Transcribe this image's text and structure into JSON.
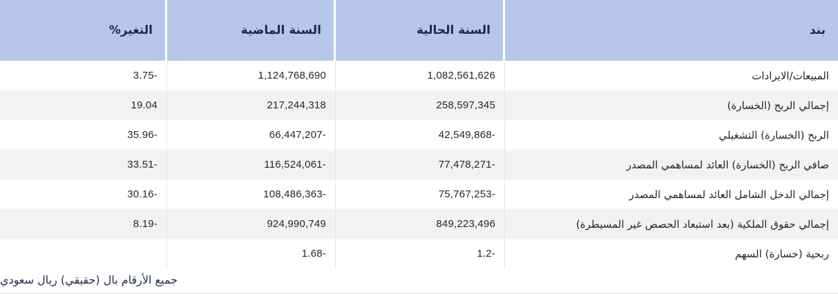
{
  "table": {
    "columns": [
      {
        "key": "item",
        "label": "بند"
      },
      {
        "key": "current",
        "label": "السنة الحالية"
      },
      {
        "key": "previous",
        "label": "السنة الماضية"
      },
      {
        "key": "change",
        "label": "التغير%"
      }
    ],
    "rows": [
      {
        "item": "المبيعات/الايرادات",
        "current": "1,082,561,626",
        "previous": "1,124,768,690",
        "change": "-3.75"
      },
      {
        "item": "إجمالي الربح (الخسارة)",
        "current": "258,597,345",
        "previous": "217,244,318",
        "change": "19.04"
      },
      {
        "item": "الربح (الخسارة) التشغيلي",
        "current": "-42,549,868",
        "previous": "-66,447,207",
        "change": "-35.96"
      },
      {
        "item": "صافي الربح (الخسارة) العائد لمساهمي المصدر",
        "current": "-77,478,271",
        "previous": "-116,524,061",
        "change": "-33.51"
      },
      {
        "item": "إجمالي الدخل الشامل العائد لمساهمي المصدر",
        "current": "-75,767,253",
        "previous": "-108,486,363",
        "change": "-30.16"
      },
      {
        "item": "إجمالي حقوق الملكية (بعد استبعاد الحصص غير المسيطرة)",
        "current": "849,223,496",
        "previous": "924,990,749",
        "change": "-8.19"
      },
      {
        "item": "ربحية (خسارة) السهم",
        "current": "-1.2",
        "previous": "-1.68",
        "change": ""
      }
    ]
  },
  "footer": {
    "note": "جميع الأرقام بال (حقيقي) ريال سعودي"
  },
  "colors": {
    "positive_value": "#27a767",
    "negative_value": "#e04f4f",
    "header_background": "#b7c7ea",
    "header_text": "#17294f",
    "alt_row_background": "#f2f2f2"
  }
}
